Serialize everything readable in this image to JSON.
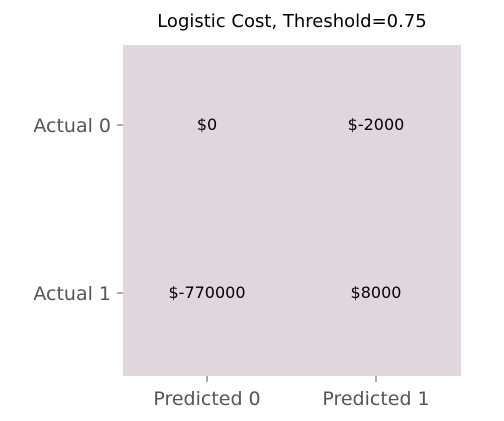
{
  "chart_data": {
    "type": "heatmap",
    "title": "Logistic Cost, Threshold=0.75",
    "x_tick_labels": [
      "Predicted 0",
      "Predicted 1"
    ],
    "y_tick_labels": [
      "Actual 0",
      "Actual 1"
    ],
    "cells": [
      [
        "$0",
        "$-2000"
      ],
      [
        "$-770000",
        "$8000"
      ]
    ],
    "values": [
      [
        0,
        -2000
      ],
      [
        -770000,
        8000
      ]
    ],
    "cell_color": "#e1d6de",
    "tick_color": "#555555",
    "grid": false,
    "legend": "none"
  }
}
